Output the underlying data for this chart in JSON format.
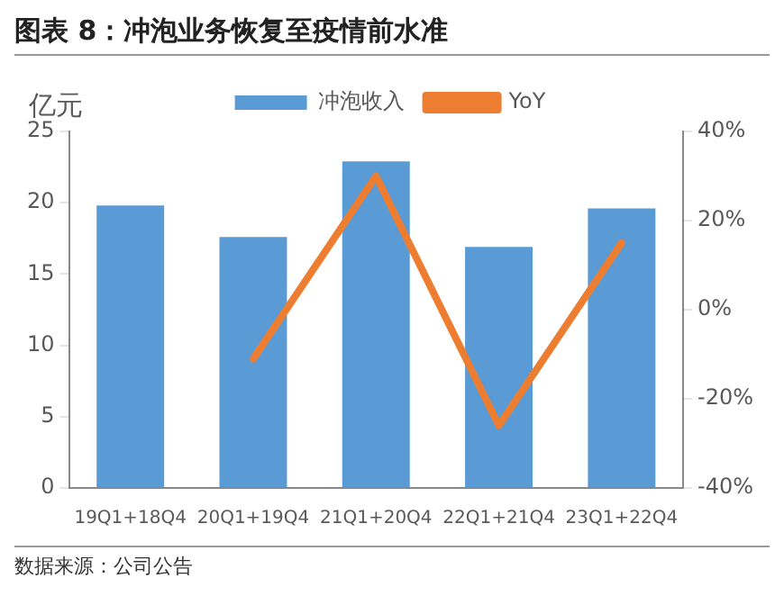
{
  "chart_data": {
    "type": "bar",
    "title": "图表 8：冲泡业务恢复至疫情前水准",
    "ylabel": "亿元",
    "categories": [
      "19Q1+18Q4",
      "20Q1+19Q4",
      "21Q1+20Q4",
      "22Q1+21Q4",
      "23Q1+22Q4"
    ],
    "series": [
      {
        "name": "冲泡收入",
        "color": "#5b9bd5",
        "values": [
          19.8,
          17.6,
          22.9,
          16.9,
          19.6
        ]
      },
      {
        "name": "YoY",
        "type": "line",
        "axis": "y2",
        "color": "#ed7d31",
        "values": [
          null,
          -11,
          30,
          -26,
          15
        ]
      }
    ],
    "ylim": [
      0,
      25
    ],
    "yticks": [
      0,
      5,
      10,
      15,
      20,
      25
    ],
    "y2lim": [
      -40,
      40
    ],
    "y2ticks": [
      {
        "value": -40,
        "label": "-40%"
      },
      {
        "value": -20,
        "label": "-20%"
      },
      {
        "value": 0,
        "label": "0%"
      },
      {
        "value": 20,
        "label": "20%"
      },
      {
        "value": 40,
        "label": "40%"
      }
    ],
    "grid": false,
    "legend": "top",
    "marker": "none",
    "annotations": [
      "数据来源：公司公告"
    ]
  }
}
